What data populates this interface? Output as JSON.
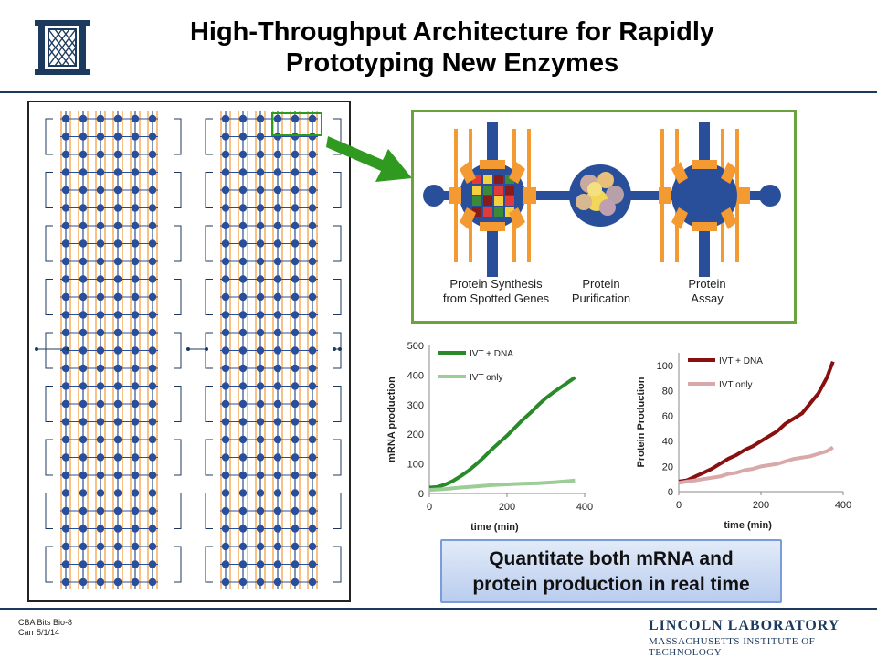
{
  "title": {
    "line1": "High-Throughput Architecture for Rapidly",
    "line2": "Prototyping New Enzymes"
  },
  "diagram": {
    "labels": {
      "synthesis": [
        "Protein Synthesis",
        "from Spotted Genes"
      ],
      "purification": [
        "Protein",
        "Purification"
      ],
      "assay": [
        "Protein",
        "Assay"
      ]
    },
    "colors": {
      "accent_border": "#6aa33a",
      "arrow": "#2f9a1f",
      "channel": "#2a4f9a",
      "electrode": "#f39a33"
    }
  },
  "chart_data": [
    {
      "type": "line",
      "xlabel": "time (min)",
      "ylabel": "mRNA production",
      "xlim": [
        0,
        400
      ],
      "ylim": [
        0,
        500
      ],
      "xticks": [
        0,
        200,
        400
      ],
      "yticks": [
        0,
        100,
        200,
        300,
        400,
        500
      ],
      "legend_position": "top-left",
      "grid": false,
      "series": [
        {
          "name": "IVT  + DNA",
          "color": "#2a8a2a",
          "x": [
            0,
            20,
            40,
            60,
            80,
            100,
            120,
            140,
            160,
            180,
            200,
            220,
            240,
            260,
            280,
            300,
            320,
            340,
            360,
            375
          ],
          "y": [
            20,
            22,
            30,
            42,
            58,
            76,
            98,
            122,
            148,
            172,
            195,
            222,
            248,
            272,
            298,
            322,
            342,
            360,
            378,
            392
          ]
        },
        {
          "name": "IVT only",
          "color": "#9ccc98",
          "x": [
            0,
            40,
            80,
            120,
            160,
            200,
            240,
            280,
            320,
            360,
            375
          ],
          "y": [
            12,
            15,
            20,
            24,
            28,
            31,
            33,
            35,
            38,
            42,
            44
          ]
        }
      ]
    },
    {
      "type": "line",
      "xlabel": "time (min)",
      "ylabel": "Protein Production",
      "xlim": [
        0,
        400
      ],
      "ylim": [
        0,
        110
      ],
      "xticks": [
        0,
        200,
        400
      ],
      "yticks": [
        0,
        20,
        40,
        60,
        80,
        100
      ],
      "legend_position": "top-left",
      "grid": false,
      "series": [
        {
          "name": "IVT + DNA",
          "color": "#8a1010",
          "x": [
            0,
            20,
            40,
            60,
            80,
            100,
            120,
            140,
            160,
            180,
            200,
            220,
            240,
            260,
            280,
            300,
            320,
            340,
            360,
            375
          ],
          "y": [
            8,
            9,
            12,
            15,
            18,
            22,
            26,
            29,
            33,
            36,
            40,
            44,
            48,
            54,
            58,
            62,
            70,
            78,
            90,
            103
          ]
        },
        {
          "name": "IVT only",
          "color": "#d9a8a8",
          "x": [
            0,
            20,
            40,
            60,
            80,
            100,
            120,
            140,
            160,
            180,
            200,
            220,
            240,
            260,
            280,
            300,
            320,
            340,
            360,
            375
          ],
          "y": [
            7,
            8,
            9,
            10,
            11,
            12,
            14,
            15,
            17,
            18,
            20,
            21,
            22,
            24,
            26,
            27,
            28,
            30,
            32,
            35
          ]
        }
      ]
    }
  ],
  "callout": {
    "line1": "Quantitate both mRNA and",
    "line2": "protein production in real time"
  },
  "footer": {
    "left_line1": "CBA Bits Bio-8",
    "left_line2": "Carr 5/1/14",
    "org_line1": "LINCOLN LABORATORY",
    "org_line2": "MASSACHUSETTS INSTITUTE OF TECHNOLOGY"
  }
}
